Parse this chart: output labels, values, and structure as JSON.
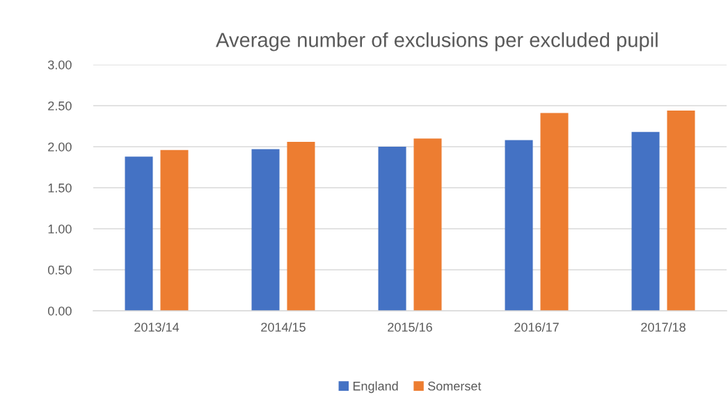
{
  "chart_data": {
    "type": "bar",
    "title": "Average number of exclusions per excluded pupil",
    "categories": [
      "2013/14",
      "2014/15",
      "2015/16",
      "2016/17",
      "2017/18"
    ],
    "series": [
      {
        "name": "England",
        "color": "#4472c4",
        "values": [
          1.88,
          1.97,
          2.0,
          2.08,
          2.18
        ]
      },
      {
        "name": "Somerset",
        "color": "#ed7d31",
        "values": [
          1.96,
          2.06,
          2.1,
          2.41,
          2.44
        ]
      }
    ],
    "ylim": [
      0,
      3
    ],
    "yticks": [
      {
        "value": 0,
        "label": "0.00"
      },
      {
        "value": 0.5,
        "label": "0.50"
      },
      {
        "value": 1,
        "label": "1.00"
      },
      {
        "value": 1.5,
        "label": "1.50"
      },
      {
        "value": 2,
        "label": "2.00"
      },
      {
        "value": 2.5,
        "label": "2.50"
      },
      {
        "value": 3,
        "label": "3.00"
      }
    ],
    "grid": "y",
    "legend": "bottom"
  }
}
